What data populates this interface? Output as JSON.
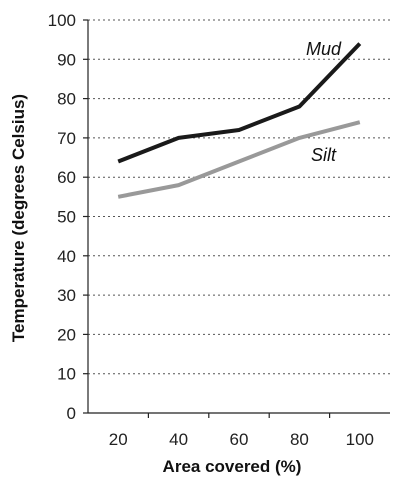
{
  "chart_data": {
    "type": "line",
    "xlabel": "Area covered (%)",
    "ylabel": "Temperature (degrees Celsius)",
    "x": [
      20,
      40,
      60,
      80,
      100
    ],
    "xlim": [
      10,
      110
    ],
    "ylim": [
      0,
      100
    ],
    "x_ticks": [
      "20",
      "40",
      "60",
      "80",
      "100"
    ],
    "y_ticks": [
      "0",
      "10",
      "20",
      "30",
      "40",
      "50",
      "60",
      "70",
      "80",
      "90",
      "100"
    ],
    "grid": "horizontal dotted",
    "series": [
      {
        "name": "Mud",
        "values": [
          64,
          70,
          72,
          78,
          94
        ],
        "color": "#1a1a1a"
      },
      {
        "name": "Silt",
        "values": [
          55,
          58,
          64,
          70,
          74
        ],
        "color": "#999999"
      }
    ]
  }
}
